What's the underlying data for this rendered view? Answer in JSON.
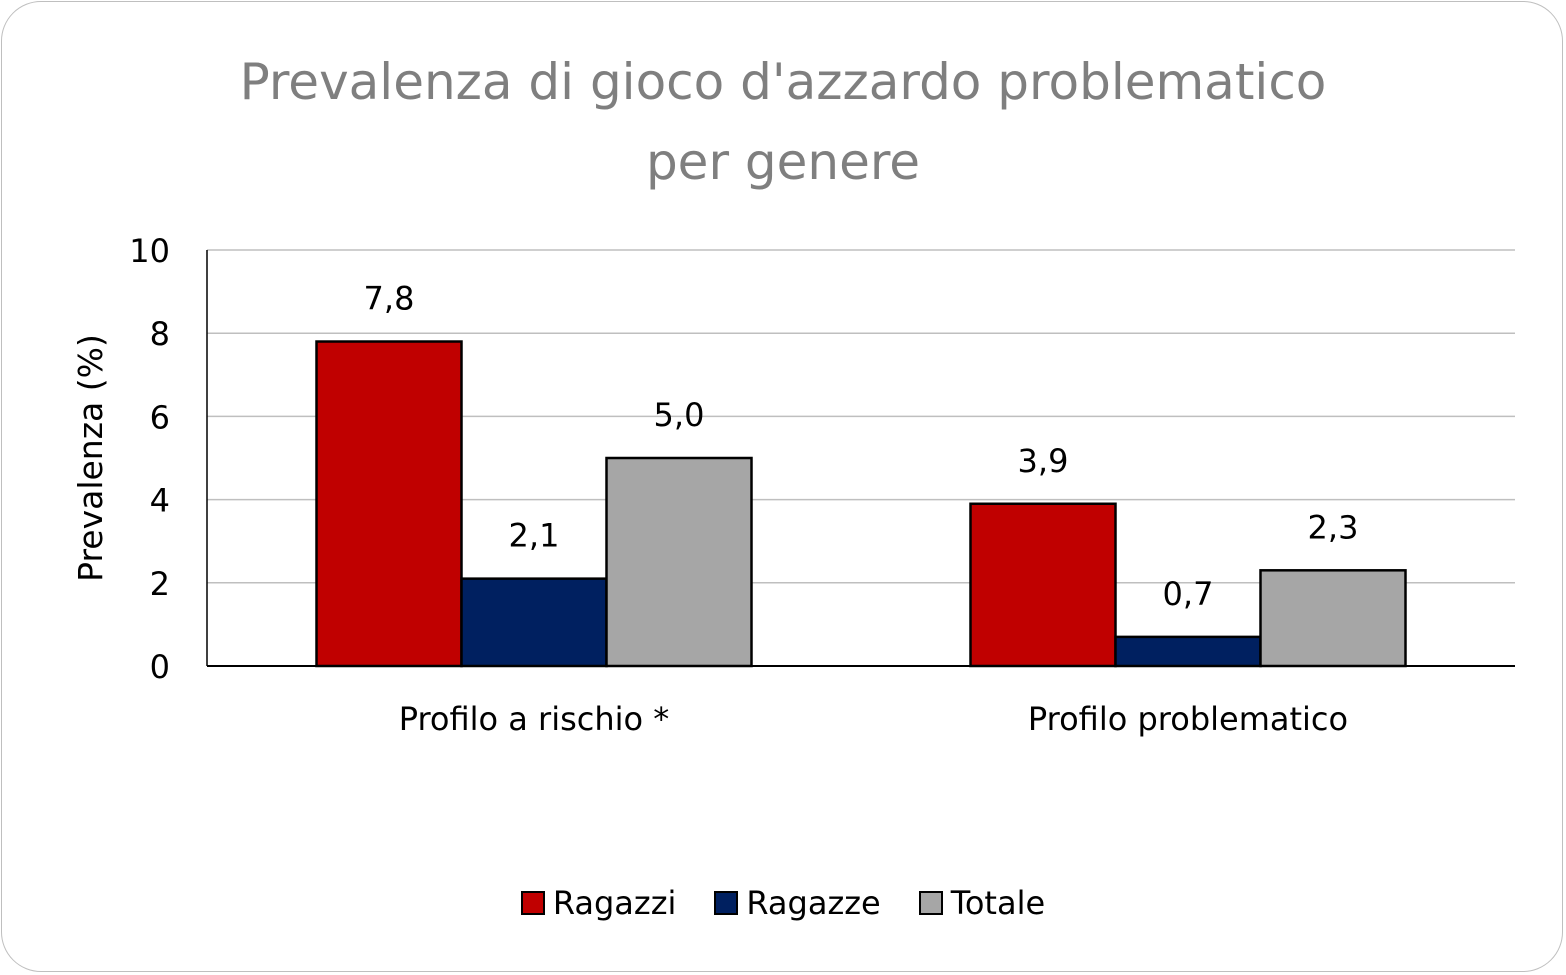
{
  "chart_data": {
    "type": "bar",
    "title_lines": [
      "Prevalenza di gioco d'azzardo problematico",
      "per genere"
    ],
    "xlabel": "",
    "ylabel": "Prevalenza (%)",
    "ylim": [
      0,
      10
    ],
    "yticks": [
      0,
      2,
      4,
      6,
      8,
      10
    ],
    "grid": true,
    "legend_position": "bottom",
    "categories": [
      "Profilo a rischio *",
      "Profilo problematico"
    ],
    "series": [
      {
        "name": "Ragazzi",
        "color": "#c00000",
        "values": [
          7.8,
          3.9
        ],
        "labels": [
          "7,8",
          "3,9"
        ]
      },
      {
        "name": "Ragazze",
        "color": "#002060",
        "values": [
          2.1,
          0.7
        ],
        "labels": [
          "2,1",
          "0,7"
        ]
      },
      {
        "name": "Totale",
        "color": "#a6a6a6",
        "values": [
          5.0,
          2.3
        ],
        "labels": [
          "5,0",
          "2,3"
        ]
      }
    ]
  }
}
